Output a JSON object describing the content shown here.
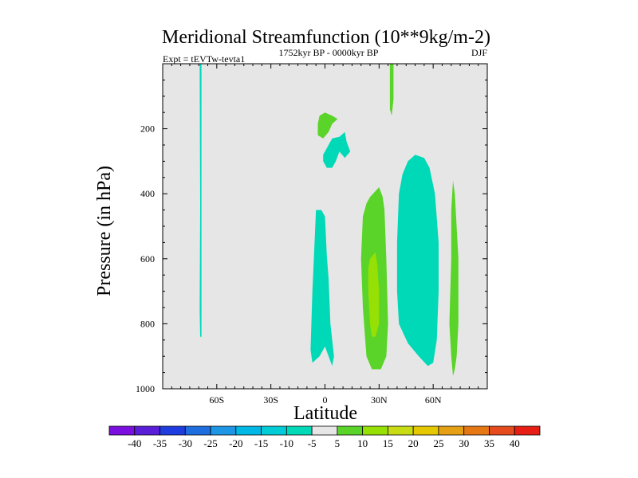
{
  "chart_data": {
    "type": "contour",
    "title": "Meridional Streamfunction (10**9kg/m-2)",
    "subtitle_left": "Expt = tEVTw-tevta1",
    "subtitle_center": "1752kyr BP - 0000kyr BP",
    "subtitle_right": "DJF",
    "xlabel": "Latitude",
    "ylabel": "Pressure (in hPa)",
    "xlim": [
      -90,
      90
    ],
    "ylim": [
      1000,
      0
    ],
    "x_ticks": [
      {
        "value": -60,
        "label": "60S"
      },
      {
        "value": -30,
        "label": "30S"
      },
      {
        "value": 0,
        "label": "0"
      },
      {
        "value": 30,
        "label": "30N"
      },
      {
        "value": 60,
        "label": "60N"
      }
    ],
    "y_ticks": [
      {
        "value": 200,
        "label": "200"
      },
      {
        "value": 400,
        "label": "400"
      },
      {
        "value": 600,
        "label": "600"
      },
      {
        "value": 800,
        "label": "800"
      },
      {
        "value": 1000,
        "label": "1000"
      }
    ],
    "background_color": "#e6e6e6",
    "regions": [
      {
        "level": "-10 to -5",
        "color": "#00d9b8",
        "points": [
          [
            -69.5,
            0
          ],
          [
            -68.5,
            0
          ],
          [
            -68.5,
            440
          ],
          [
            -68.5,
            840
          ],
          [
            -69.2,
            840
          ],
          [
            -69.5,
            760
          ],
          [
            -69.2,
            440
          ]
        ]
      },
      {
        "level": "5 to 10",
        "color": "#5ad428",
        "points": [
          [
            -3,
            160
          ],
          [
            0,
            150
          ],
          [
            4,
            160
          ],
          [
            7,
            170
          ],
          [
            4,
            185
          ],
          [
            2,
            210
          ],
          [
            -1,
            230
          ],
          [
            -4,
            220
          ],
          [
            -4,
            185
          ]
        ]
      },
      {
        "level": "-10 to -5",
        "color": "#00d9b8",
        "points": [
          [
            -1,
            280
          ],
          [
            4,
            230
          ],
          [
            8,
            225
          ],
          [
            11,
            210
          ],
          [
            12,
            240
          ],
          [
            14,
            270
          ],
          [
            11,
            290
          ],
          [
            8,
            270
          ],
          [
            6,
            300
          ],
          [
            4,
            320
          ],
          [
            1,
            320
          ],
          [
            -1,
            300
          ]
        ]
      },
      {
        "level": "-10 to -5",
        "color": "#00d9b8",
        "points": [
          [
            -5,
            450
          ],
          [
            -2,
            450
          ],
          [
            0,
            470
          ],
          [
            1,
            590
          ],
          [
            2,
            660
          ],
          [
            3,
            800
          ],
          [
            5,
            900
          ],
          [
            4,
            930
          ],
          [
            0,
            870
          ],
          [
            -3,
            900
          ],
          [
            -7,
            920
          ],
          [
            -8,
            880
          ],
          [
            -7,
            700
          ],
          [
            -6,
            580
          ]
        ]
      },
      {
        "level": "5 to 10",
        "color": "#5ad428",
        "points": [
          [
            36,
            0
          ],
          [
            38,
            0
          ],
          [
            38,
            110
          ],
          [
            37,
            160
          ],
          [
            36,
            140
          ]
        ]
      },
      {
        "level": "5 to 10",
        "color": "#5ad428",
        "points": [
          [
            25,
            410
          ],
          [
            30,
            380
          ],
          [
            32,
            410
          ],
          [
            33,
            450
          ],
          [
            34,
            600
          ],
          [
            35,
            800
          ],
          [
            34,
            900
          ],
          [
            31,
            940
          ],
          [
            26,
            940
          ],
          [
            23,
            900
          ],
          [
            21,
            750
          ],
          [
            20,
            600
          ],
          [
            21,
            470
          ],
          [
            23,
            430
          ]
        ]
      },
      {
        "level": "10 to 15",
        "color": "#96e006",
        "points": [
          [
            25,
            600
          ],
          [
            28,
            580
          ],
          [
            29,
            620
          ],
          [
            30,
            700
          ],
          [
            30,
            800
          ],
          [
            28,
            840
          ],
          [
            26,
            840
          ],
          [
            25,
            800
          ],
          [
            24,
            700
          ],
          [
            24,
            630
          ]
        ]
      },
      {
        "level": "-10 to -5",
        "color": "#00d9b8",
        "points": [
          [
            46,
            300
          ],
          [
            50,
            280
          ],
          [
            55,
            290
          ],
          [
            58,
            320
          ],
          [
            61,
            400
          ],
          [
            63,
            550
          ],
          [
            63,
            700
          ],
          [
            62,
            850
          ],
          [
            60,
            920
          ],
          [
            57,
            930
          ],
          [
            52,
            900
          ],
          [
            46,
            860
          ],
          [
            41,
            800
          ],
          [
            40,
            700
          ],
          [
            40,
            550
          ],
          [
            41,
            400
          ],
          [
            43,
            340
          ]
        ]
      },
      {
        "level": "5 to 10",
        "color": "#5ad428",
        "points": [
          [
            71,
            360
          ],
          [
            72,
            400
          ],
          [
            74,
            600
          ],
          [
            74,
            800
          ],
          [
            73,
            900
          ],
          [
            72,
            940
          ],
          [
            71,
            960
          ],
          [
            70,
            900
          ],
          [
            69,
            800
          ],
          [
            70,
            600
          ],
          [
            70,
            450
          ]
        ]
      }
    ],
    "colorbar": {
      "labels": [
        "-40",
        "-35",
        "-30",
        "-25",
        "-20",
        "-15",
        "-10",
        "-5",
        "5",
        "10",
        "15",
        "20",
        "25",
        "30",
        "35",
        "40"
      ],
      "colors": [
        "#7a0fe0",
        "#5a1ed8",
        "#1e3ce0",
        "#1e6ee0",
        "#1e96e6",
        "#00b8e6",
        "#00ccd8",
        "#00d9b8",
        "#e6e6e6",
        "#5ad428",
        "#96e006",
        "#c8dc14",
        "#e6c800",
        "#e6a014",
        "#e67814",
        "#e64b1e",
        "#e61e14"
      ]
    }
  }
}
